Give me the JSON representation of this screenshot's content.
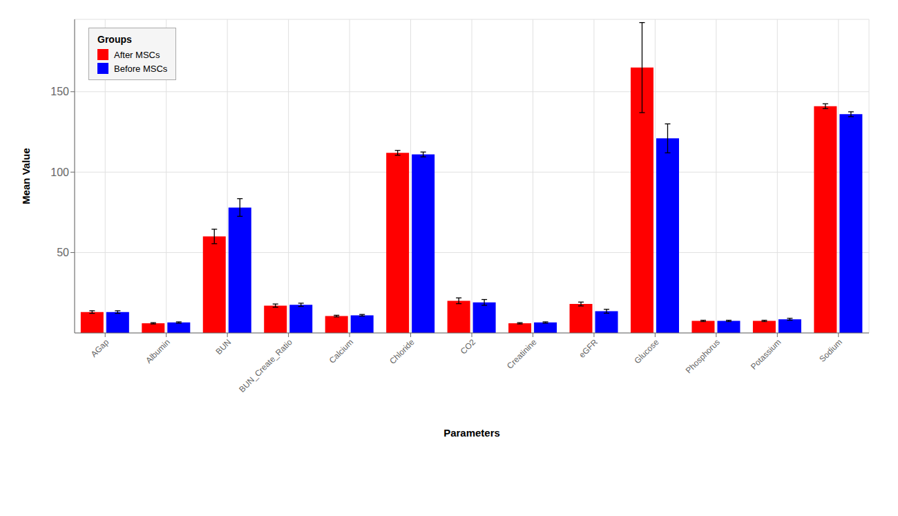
{
  "chart_data": {
    "type": "bar",
    "categories": [
      "AGap",
      "Albumin",
      "BUN",
      "BUN_Create_Ratio",
      "Calcium",
      "Chloride",
      "CO2",
      "Creatinine",
      "eGFR",
      "Glucose",
      "Phosphorus",
      "Potassium",
      "Sodium"
    ],
    "series": [
      {
        "name": "After MSCs",
        "color": "#FF0000",
        "values": [
          13.0,
          6.0,
          60.0,
          17.0,
          10.5,
          112.0,
          20.0,
          6.0,
          18.0,
          165.0,
          7.5,
          7.5,
          141.0
        ],
        "errors": [
          0.8,
          0.4,
          4.5,
          1.0,
          0.5,
          1.5,
          1.8,
          0.4,
          1.2,
          28.0,
          0.4,
          0.4,
          1.5
        ]
      },
      {
        "name": "Before MSCs",
        "color": "#0000FF",
        "values": [
          13.0,
          6.5,
          78.0,
          17.5,
          11.0,
          111.0,
          19.0,
          6.5,
          13.5,
          121.0,
          7.5,
          8.5,
          136.0
        ],
        "errors": [
          0.8,
          0.4,
          5.5,
          1.0,
          0.5,
          1.5,
          1.8,
          0.4,
          1.2,
          9.0,
          0.4,
          0.6,
          1.5
        ]
      }
    ],
    "xlabel": "Parameters",
    "ylabel": "Mean Value",
    "legend_title": "Groups",
    "legend": "upper left",
    "ylim": [
      0,
      195
    ],
    "yticks": [
      50,
      100,
      150
    ],
    "grid": true
  }
}
